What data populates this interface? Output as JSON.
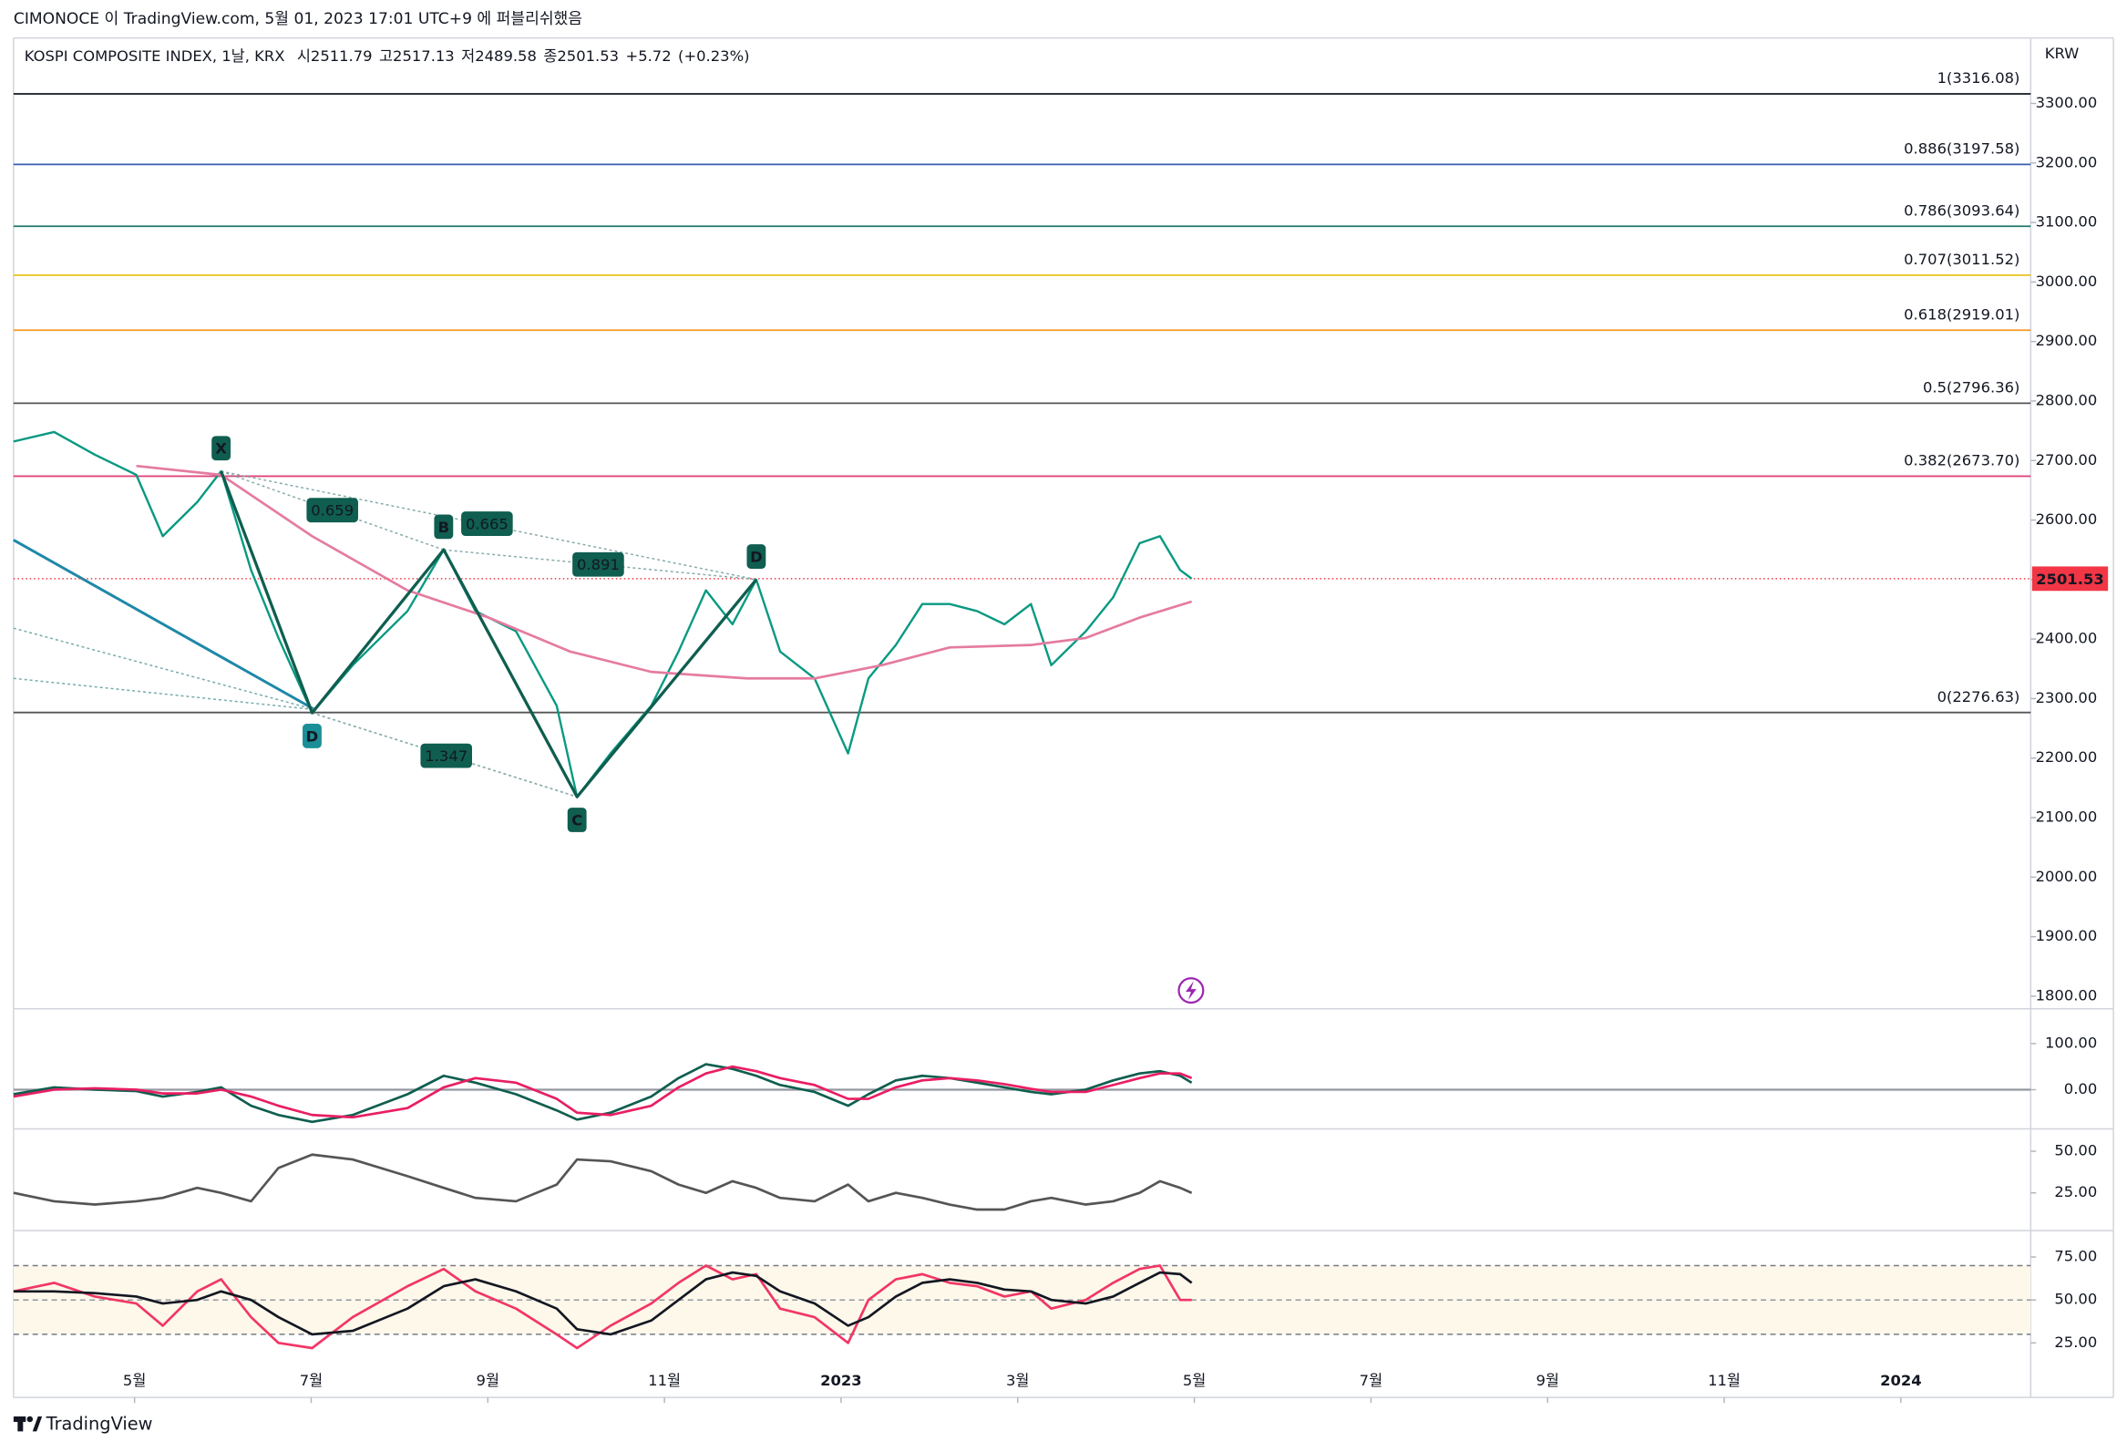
{
  "header": "CIMONOCE 이 TradingView.com, 5월 01, 2023 17:01 UTC+9 에 퍼블리쉬했음",
  "footer": "TradingView",
  "chart_data": [
    {
      "type": "line",
      "title": "KOSPI COMPOSITE INDEX, 1날, KRX",
      "ohlc": [
        {
          "label": "시",
          "value": 2511.79
        },
        {
          "label": "고",
          "value": 2517.13
        },
        {
          "label": "저",
          "value": 2489.58
        },
        {
          "label": "종",
          "value": 2501.53
        }
      ],
      "change": {
        "value": 5.72,
        "label": "+5.72"
      },
      "change_pct": {
        "value": 0.23,
        "label": "(+0.23%)"
      },
      "unit": "KRW",
      "last_price": 2501.53,
      "x": [
        2.63,
        3.09,
        3.55,
        4.02,
        4.32,
        4.71,
        4.98,
        5.32,
        5.63,
        6.01,
        6.47,
        7.09,
        7.5,
        7.86,
        8.32,
        8.78,
        9.01,
        9.39,
        9.85,
        10.16,
        10.47,
        10.77,
        11.04,
        11.31,
        11.7,
        12.08,
        12.31,
        12.62,
        12.92,
        13.23,
        13.54,
        13.85,
        14.15,
        14.38,
        14.77,
        15.08,
        15.38,
        15.61,
        15.84,
        15.97
      ],
      "xlim": [
        2.63,
        25.47
      ],
      "xticks": [
        {
          "value": 4,
          "label": "5월"
        },
        {
          "value": 6,
          "label": "7월"
        },
        {
          "value": 8,
          "label": "9월"
        },
        {
          "value": 10,
          "label": "11월"
        },
        {
          "value": 12,
          "label": "2023"
        },
        {
          "value": 14,
          "label": "3월"
        },
        {
          "value": 16,
          "label": "5월"
        },
        {
          "value": 18,
          "label": "7월"
        },
        {
          "value": 20,
          "label": "9월"
        },
        {
          "value": 22,
          "label": "11월"
        },
        {
          "value": 24,
          "label": "2024"
        }
      ],
      "ylim": [
        1780,
        3410
      ],
      "yticks": [
        {
          "value": 1800,
          "label": "1800.00"
        },
        {
          "value": 1900,
          "label": "1900.00"
        },
        {
          "value": 2000,
          "label": "2000.00"
        },
        {
          "value": 2100,
          "label": "2100.00"
        },
        {
          "value": 2200,
          "label": "2200.00"
        },
        {
          "value": 2300,
          "label": "2300.00"
        },
        {
          "value": 2400,
          "label": "2400.00"
        },
        {
          "value": 2500,
          "label": "2500.00"
        },
        {
          "value": 2600,
          "label": "2600.00"
        },
        {
          "value": 2700,
          "label": "2700.00"
        },
        {
          "value": 2800,
          "label": "2800.00"
        },
        {
          "value": 2900,
          "label": "2900.00"
        },
        {
          "value": 3000,
          "label": "3000.00"
        },
        {
          "value": 3100,
          "label": "3100.00"
        },
        {
          "value": 3200,
          "label": "3200.00"
        },
        {
          "value": 3300,
          "label": "3300.00"
        }
      ],
      "series": [
        {
          "color": "#089981",
          "values": [
            2732,
            2748,
            2710,
            2676,
            2573,
            2630,
            2682,
            2516,
            2402,
            2276,
            2356,
            2447,
            2550,
            2447,
            2413,
            2288,
            2135,
            2208,
            2288,
            2379,
            2482,
            2425,
            2500,
            2379,
            2334,
            2208,
            2334,
            2390,
            2459,
            2459,
            2447,
            2425,
            2459,
            2356,
            2413,
            2470,
            2561,
            2573,
            2516,
            2501.53
          ]
        },
        {
          "color": "#e57ba0",
          "x": [
            4.02,
            4.98,
            6.01,
            7.09,
            8.01,
            8.93,
            9.85,
            10.93,
            11.7,
            12.46,
            13.23,
            14.15,
            14.77,
            15.38,
            15.97
          ],
          "values": [
            2691,
            2676,
            2573,
            2482,
            2436,
            2379,
            2345,
            2334,
            2334,
            2356,
            2386,
            2390,
            2402,
            2436,
            2463
          ]
        }
      ],
      "fib_levels": [
        {
          "value": 3316.08,
          "label": "1(3316.08)",
          "color": "#131722"
        },
        {
          "value": 3197.58,
          "label": "0.886(3197.58)",
          "color": "#3a5bb0"
        },
        {
          "value": 3093.64,
          "label": "0.786(3093.64)",
          "color": "#1b7a6a"
        },
        {
          "value": 3011.52,
          "label": "0.707(3011.52)",
          "color": "#e8c21a"
        },
        {
          "value": 2919.01,
          "label": "0.618(2919.01)",
          "color": "#f29a1f"
        },
        {
          "value": 2796.36,
          "label": "0.5(2796.36)",
          "color": "#555555"
        },
        {
          "value": 2673.7,
          "label": "0.382(2673.70)",
          "color": "#e0457b"
        },
        {
          "value": 2276.63,
          "label": "0(2276.63)",
          "color": "#555555"
        }
      ],
      "pattern": {
        "color": "#0f5e4f",
        "points": [
          {
            "label": "X",
            "x": 4.98,
            "y": 2682
          },
          {
            "label": "D",
            "x": 6.01,
            "y": 2276
          },
          {
            "label": "B",
            "x": 7.5,
            "y": 2550
          },
          {
            "label": "C",
            "x": 9.01,
            "y": 2135
          },
          {
            "label": "D",
            "x": 11.04,
            "y": 2500
          }
        ],
        "ratios": [
          0.659,
          0.665,
          0.891,
          1.347
        ]
      }
    },
    {
      "type": "line",
      "ylim": [
        -79,
        171
      ],
      "yticks": [
        {
          "value": 0,
          "label": "0.00"
        },
        {
          "value": 100,
          "label": "100.00"
        }
      ],
      "baseline": 0,
      "series": [
        {
          "color": "#0f5e4f",
          "values": [
            -10,
            5,
            0,
            -3,
            -15,
            -5,
            5,
            -35,
            -55,
            -70,
            -55,
            -10,
            30,
            15,
            -10,
            -45,
            -65,
            -50,
            -15,
            25,
            55,
            45,
            30,
            10,
            -5,
            -35,
            -10,
            20,
            30,
            25,
            15,
            5,
            -5,
            -10,
            0,
            20,
            35,
            40,
            30,
            15
          ]
        },
        {
          "color": "#e91e63",
          "values": [
            -15,
            0,
            3,
            0,
            -8,
            -8,
            0,
            -15,
            -35,
            -55,
            -60,
            -40,
            5,
            25,
            15,
            -20,
            -50,
            -55,
            -35,
            5,
            35,
            50,
            40,
            25,
            10,
            -20,
            -20,
            5,
            20,
            25,
            20,
            12,
            2,
            -5,
            -5,
            10,
            25,
            35,
            35,
            25
          ]
        }
      ]
    },
    {
      "type": "line",
      "ylim": [
        4,
        61
      ],
      "yticks": [
        {
          "value": 25,
          "label": "25.00"
        },
        {
          "value": 50,
          "label": "50.00"
        }
      ],
      "series": [
        {
          "color": "#555555",
          "values": [
            25,
            20,
            18,
            20,
            22,
            28,
            25,
            20,
            40,
            48,
            45,
            35,
            28,
            22,
            20,
            30,
            45,
            44,
            38,
            30,
            25,
            32,
            28,
            22,
            20,
            30,
            20,
            25,
            22,
            18,
            15,
            15,
            20,
            22,
            18,
            20,
            25,
            32,
            28,
            25
          ]
        }
      ]
    },
    {
      "type": "line",
      "ylim": [
        13,
        88
      ],
      "yticks": [
        {
          "value": 25,
          "label": "25.00"
        },
        {
          "value": 50,
          "label": "50.00"
        },
        {
          "value": 75,
          "label": "75.00"
        }
      ],
      "band": [
        30,
        70
      ],
      "midline": 50,
      "series": [
        {
          "color": "#f23666",
          "values": [
            55,
            60,
            52,
            48,
            35,
            55,
            62,
            40,
            25,
            22,
            40,
            58,
            68,
            55,
            45,
            30,
            22,
            35,
            48,
            60,
            70,
            62,
            65,
            45,
            40,
            25,
            50,
            62,
            65,
            60,
            58,
            52,
            55,
            45,
            50,
            60,
            68,
            70,
            50,
            50
          ]
        },
        {
          "color": "#131722",
          "values": [
            55,
            55,
            54,
            52,
            48,
            50,
            55,
            50,
            40,
            30,
            32,
            45,
            58,
            62,
            55,
            45,
            33,
            30,
            38,
            50,
            62,
            66,
            64,
            55,
            48,
            35,
            40,
            52,
            60,
            62,
            60,
            56,
            55,
            50,
            48,
            52,
            60,
            66,
            65,
            60
          ]
        }
      ]
    }
  ]
}
